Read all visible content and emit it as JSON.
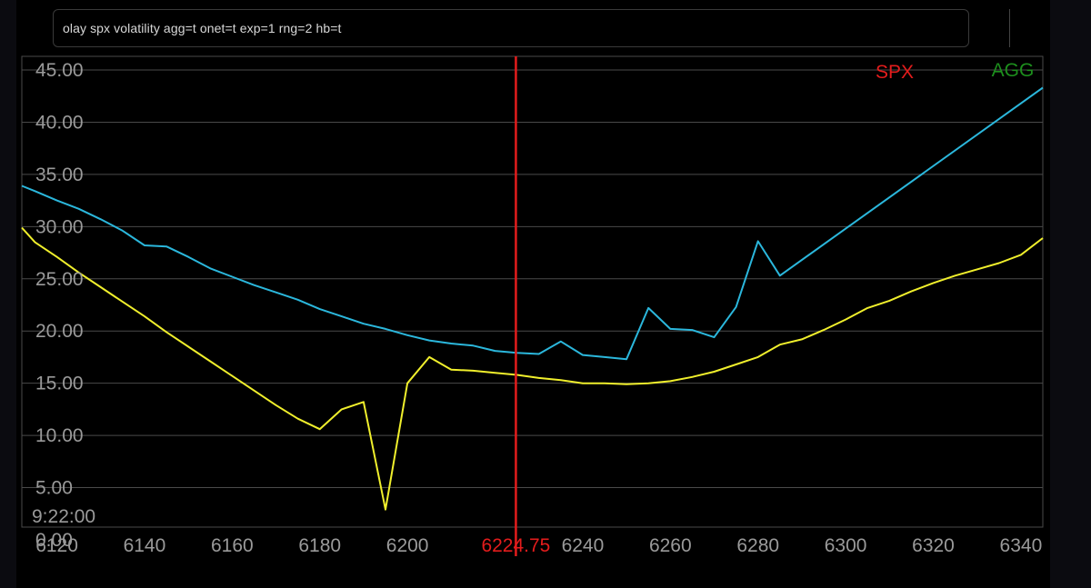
{
  "command": {
    "text": "olay spx volatility agg=t onet=t exp=1 rng=2 hb=t"
  },
  "colors": {
    "background": "#000000",
    "grid": "#4a4a4a",
    "axis_text": "#9a9a9a",
    "spx_series": "#2bb7dc",
    "agg_series": "#f0ef2c",
    "marker": "#e31c1c",
    "spx_legend": "#e31c1c",
    "agg_legend": "#1d8f1d"
  },
  "chart_data": {
    "type": "line",
    "xlim": [
      6112,
      6345
    ],
    "ylim": [
      0,
      45
    ],
    "x_ticks": [
      "6120",
      "6140",
      "6160",
      "6180",
      "6200",
      "6240",
      "6260",
      "6280",
      "6300",
      "6320",
      "6340"
    ],
    "y_ticks": [
      "45.00",
      "40.00",
      "35.00",
      "30.00",
      "25.00",
      "20.00",
      "15.00",
      "10.00",
      "5.00",
      "0.00"
    ],
    "time_label": "9:22:00",
    "legend": [
      "SPX",
      "AGG"
    ],
    "marker": {
      "x": 6224.75,
      "label": "6224.75"
    },
    "grid": true,
    "series": [
      {
        "color": "#2bb7dc",
        "x": [
          6112,
          6115,
          6120,
          6125,
          6130,
          6135,
          6140,
          6145,
          6150,
          6155,
          6160,
          6165,
          6170,
          6175,
          6180,
          6185,
          6190,
          6195,
          6200,
          6205,
          6210,
          6215,
          6220,
          6225,
          6230,
          6235,
          6240,
          6245,
          6250,
          6255,
          6260,
          6265,
          6270,
          6275,
          6280,
          6285,
          6345
        ],
        "y": [
          33.9,
          33.4,
          32.5,
          31.7,
          30.7,
          29.6,
          28.2,
          28.1,
          27.1,
          26.0,
          25.2,
          24.4,
          23.7,
          23.0,
          22.1,
          21.4,
          20.7,
          20.2,
          19.6,
          19.1,
          18.8,
          18.6,
          18.1,
          17.9,
          17.8,
          19.0,
          17.7,
          17.5,
          17.3,
          22.2,
          20.2,
          20.1,
          19.4,
          22.3,
          28.6,
          25.3,
          43.3
        ]
      },
      {
        "color": "#f0ef2c",
        "x": [
          6112,
          6115,
          6120,
          6125,
          6130,
          6135,
          6140,
          6145,
          6150,
          6155,
          6160,
          6165,
          6170,
          6175,
          6180,
          6185,
          6190,
          6195,
          6200,
          6205,
          6210,
          6215,
          6220,
          6225,
          6230,
          6235,
          6240,
          6245,
          6250,
          6255,
          6260,
          6265,
          6270,
          6275,
          6280,
          6285,
          6290,
          6295,
          6300,
          6305,
          6310,
          6315,
          6320,
          6325,
          6330,
          6335,
          6340,
          6345
        ],
        "y": [
          29.9,
          28.5,
          27.1,
          25.6,
          24.2,
          22.8,
          21.4,
          19.9,
          18.5,
          17.1,
          15.7,
          14.3,
          12.9,
          11.6,
          10.6,
          12.5,
          13.2,
          2.9,
          15.0,
          17.5,
          16.3,
          16.2,
          16.0,
          15.8,
          15.5,
          15.3,
          15.0,
          15.0,
          14.9,
          15.0,
          15.2,
          15.6,
          16.1,
          16.8,
          17.5,
          18.7,
          19.2,
          20.1,
          21.1,
          22.2,
          22.9,
          23.8,
          24.6,
          25.3,
          25.9,
          26.5,
          27.3,
          28.9
        ]
      }
    ]
  }
}
